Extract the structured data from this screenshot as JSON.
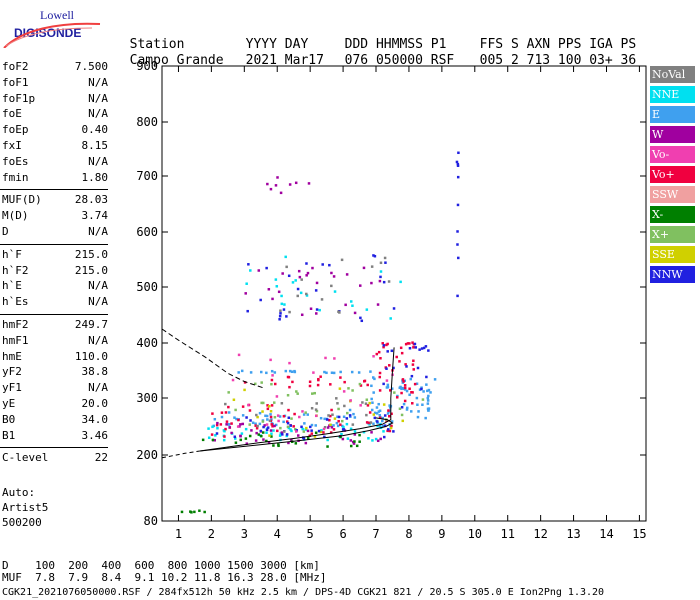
{
  "logo": {
    "line1": "Lowell",
    "line2": "DIGISONDE"
  },
  "header": {
    "row1": [
      "Station",
      "YYYY DAY",
      "DDD HHMMSS P1",
      "FFS S AXN PPS IGA PS"
    ],
    "row2": [
      "Campo Grande",
      "2021 Mar17",
      "076 050000 RSF",
      "005 2 713 100 03+ 36"
    ]
  },
  "params": {
    "group1": [
      {
        "k": "foF2",
        "v": "7.500"
      },
      {
        "k": "foF1",
        "v": "N/A"
      },
      {
        "k": "foF1p",
        "v": "N/A"
      },
      {
        "k": "foE",
        "v": "N/A"
      },
      {
        "k": "foEp",
        "v": "0.40"
      },
      {
        "k": "fxI",
        "v": "8.15"
      },
      {
        "k": "foEs",
        "v": "N/A"
      },
      {
        "k": "fmin",
        "v": "1.80"
      }
    ],
    "group2": [
      {
        "k": "MUF(D)",
        "v": "28.03"
      },
      {
        "k": "M(D)",
        "v": "3.74"
      },
      {
        "k": "D",
        "v": "N/A"
      }
    ],
    "group3": [
      {
        "k": "h`F",
        "v": "215.0"
      },
      {
        "k": "h`F2",
        "v": "215.0"
      },
      {
        "k": "h`E",
        "v": "N/A"
      },
      {
        "k": "h`Es",
        "v": "N/A"
      }
    ],
    "group4": [
      {
        "k": "hmF2",
        "v": "249.7"
      },
      {
        "k": "hmF1",
        "v": "N/A"
      },
      {
        "k": "hmE",
        "v": "110.0"
      },
      {
        "k": "yF2",
        "v": "38.8"
      },
      {
        "k": "yF1",
        "v": "N/A"
      },
      {
        "k": "yE",
        "v": "20.0"
      },
      {
        "k": "B0",
        "v": "34.0"
      },
      {
        "k": "B1",
        "v": "3.46"
      }
    ],
    "group5": [
      {
        "k": "C-level",
        "v": "22"
      }
    ]
  },
  "auto": {
    "line1": "Auto:",
    "line2": "Artist5",
    "line3": "500200"
  },
  "legend": [
    {
      "label": "NoVal",
      "bg": "#808080",
      "fg": "#ffffff"
    },
    {
      "label": "NNE",
      "bg": "#00e0f0",
      "fg": "#ffffff"
    },
    {
      "label": "E",
      "bg": "#3fa0ef",
      "fg": "#ffffff"
    },
    {
      "label": "W",
      "bg": "#a0009f",
      "fg": "#ffffff"
    },
    {
      "label": "Vo-",
      "bg": "#f03fb0",
      "fg": "#ffffff"
    },
    {
      "label": "Vo+",
      "bg": "#f0003f",
      "fg": "#ffffff"
    },
    {
      "label": "SSW",
      "bg": "#f0a0a0",
      "fg": "#ffffff"
    },
    {
      "label": "X-",
      "bg": "#007f00",
      "fg": "#ffffff"
    },
    {
      "label": "X+",
      "bg": "#80c060",
      "fg": "#ffffff"
    },
    {
      "label": "SSE",
      "bg": "#d0d000",
      "fg": "#ffffff"
    },
    {
      "label": "NNW",
      "bg": "#2020e0",
      "fg": "#ffffff"
    }
  ],
  "bottom": {
    "d_row": "D    100  200  400  600  800 1000 1500 3000 [km]",
    "muf_row": "MUF  7.8  7.9  8.4  9.1 10.2 11.8 16.3 28.0 [MHz]",
    "footer": "CGK21_2021076050000.RSF / 284fx512h 50 kHz 2.5 km / DPS-4D CGK21 821 / 20.5 S 305.0 E Ion2Png 1.3.20"
  },
  "chart_data": {
    "type": "scatter",
    "xlim": [
      0.5,
      15.2
    ],
    "ylim": [
      80,
      900
    ],
    "x_ticks": [
      1,
      2,
      3,
      4,
      5,
      6,
      7,
      8,
      9,
      10,
      11,
      12,
      13,
      14,
      15
    ],
    "y_ticks": [
      80,
      200,
      300,
      400,
      500,
      600,
      700,
      800,
      900
    ],
    "grid": false,
    "series": [
      {
        "name": "E",
        "color": "#3fa0ef",
        "clusters": [
          {
            "x0": 2.0,
            "x1": 7.5,
            "y0": 250,
            "y1": 280,
            "n": 60
          },
          {
            "x0": 6.8,
            "x1": 8.8,
            "y0": 265,
            "y1": 340,
            "n": 60
          },
          {
            "x0": 2.8,
            "x1": 7.0,
            "y0": 346,
            "y1": 350,
            "n": 20
          }
        ]
      },
      {
        "name": "NNE",
        "color": "#00e0f0",
        "clusters": [
          {
            "x0": 1.7,
            "x1": 7.5,
            "y0": 225,
            "y1": 255,
            "n": 50
          },
          {
            "x0": 3.0,
            "x1": 7.8,
            "y0": 440,
            "y1": 560,
            "n": 20
          }
        ]
      },
      {
        "name": "Vo+",
        "color": "#f0003f",
        "clusters": [
          {
            "x0": 2.0,
            "x1": 7.6,
            "y0": 230,
            "y1": 290,
            "n": 55
          },
          {
            "x0": 7.0,
            "x1": 8.2,
            "y0": 280,
            "y1": 410,
            "n": 40
          },
          {
            "x0": 3.0,
            "x1": 6.8,
            "y0": 320,
            "y1": 340,
            "n": 20
          }
        ]
      },
      {
        "name": "W",
        "color": "#a0009f",
        "clusters": [
          {
            "x0": 1.8,
            "x1": 7.3,
            "y0": 220,
            "y1": 260,
            "n": 40
          },
          {
            "x0": 3.0,
            "x1": 7.5,
            "y0": 450,
            "y1": 540,
            "n": 25
          },
          {
            "x0": 3.5,
            "x1": 5.0,
            "y0": 670,
            "y1": 700,
            "n": 8
          }
        ]
      },
      {
        "name": "X-",
        "color": "#007f00",
        "clusters": [
          {
            "x0": 1.7,
            "x1": 7.0,
            "y0": 215,
            "y1": 240,
            "n": 25
          },
          {
            "x0": 1.0,
            "x1": 1.8,
            "y0": 95,
            "y1": 100,
            "n": 6
          }
        ]
      },
      {
        "name": "X+",
        "color": "#80c060",
        "clusters": [
          {
            "x0": 2.5,
            "x1": 8.5,
            "y0": 240,
            "y1": 330,
            "n": 35
          }
        ]
      },
      {
        "name": "SSE",
        "color": "#d0d000",
        "clusters": [
          {
            "x0": 2.5,
            "x1": 8.0,
            "y0": 230,
            "y1": 320,
            "n": 20
          }
        ]
      },
      {
        "name": "NNW",
        "color": "#2020e0",
        "clusters": [
          {
            "x0": 2.0,
            "x1": 7.6,
            "y0": 230,
            "y1": 270,
            "n": 35
          },
          {
            "x0": 7.2,
            "x1": 8.6,
            "y0": 280,
            "y1": 400,
            "n": 20
          },
          {
            "x0": 3.0,
            "x1": 7.8,
            "y0": 440,
            "y1": 560,
            "n": 25
          },
          {
            "x0": 9.45,
            "x1": 9.5,
            "y0": 460,
            "y1": 760,
            "n": 10
          }
        ]
      },
      {
        "name": "NoVal",
        "color": "#808080",
        "clusters": [
          {
            "x0": 2.0,
            "x1": 7.5,
            "y0": 240,
            "y1": 300,
            "n": 20
          },
          {
            "x0": 3.0,
            "x1": 7.5,
            "y0": 450,
            "y1": 560,
            "n": 15
          }
        ]
      },
      {
        "name": "Vo-",
        "color": "#f03fb0",
        "clusters": [
          {
            "x0": 2.5,
            "x1": 7.8,
            "y0": 240,
            "y1": 380,
            "n": 25
          }
        ]
      }
    ],
    "profile_solid": [
      [
        1.65,
        207
      ],
      [
        2.5,
        214
      ],
      [
        3.5,
        222
      ],
      [
        4.5,
        229
      ],
      [
        5.5,
        237
      ],
      [
        6.5,
        246
      ],
      [
        7.2,
        254
      ],
      [
        7.45,
        262
      ],
      [
        7.45,
        300
      ],
      [
        7.5,
        350
      ],
      [
        7.55,
        392
      ]
    ],
    "profile_solid2": [
      [
        1.65,
        207
      ],
      [
        3,
        215
      ],
      [
        4.5,
        224
      ],
      [
        6,
        234
      ],
      [
        6.8,
        243
      ],
      [
        7.3,
        250
      ],
      [
        7.5,
        256
      ],
      [
        7.35,
        262
      ],
      [
        7.0,
        265
      ]
    ],
    "profile_dashed": [
      [
        0.5,
        195
      ],
      [
        1.2,
        203
      ],
      [
        1.65,
        207
      ]
    ],
    "profile_dashed_top": [
      [
        0.5,
        425
      ],
      [
        1.0,
        405
      ],
      [
        1.8,
        375
      ],
      [
        2.5,
        345
      ],
      [
        3.0,
        330
      ],
      [
        3.6,
        318
      ]
    ]
  }
}
